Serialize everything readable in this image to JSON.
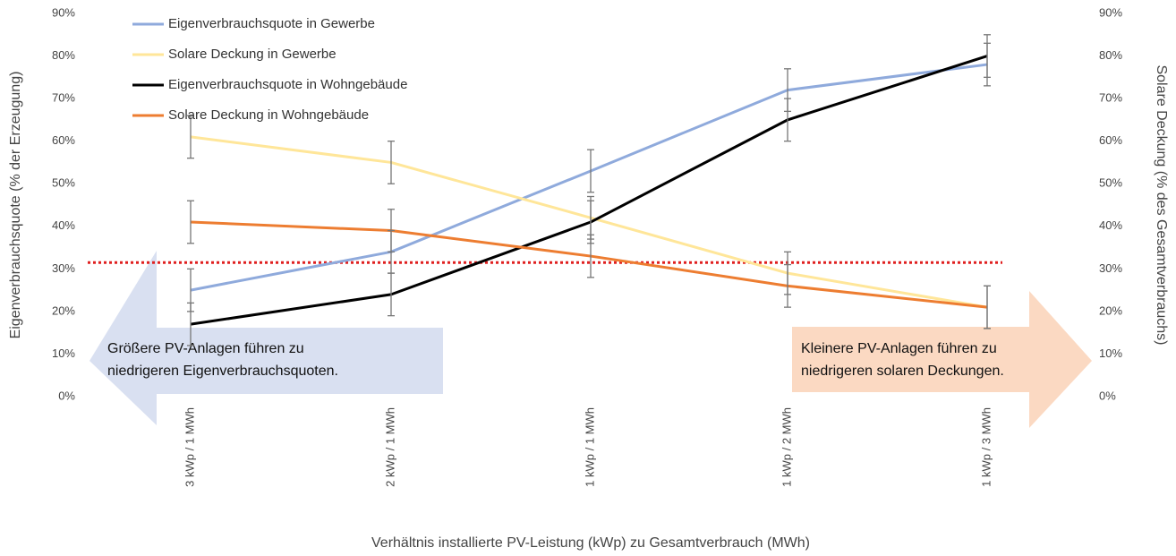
{
  "chart_data": {
    "type": "line",
    "categories": [
      "3 kWp / 1 MWh",
      "2 kWp / 1 MWh",
      "1 kWp / 1 MWh",
      "1 kWp / 2 MWh",
      "1 kWp / 3 MWh"
    ],
    "series": [
      {
        "name": "Eigenverbrauchsquote in Gewerbe",
        "color": "#8faadc",
        "values": [
          25,
          34,
          53,
          72,
          78
        ],
        "errors": [
          5,
          5,
          5,
          5,
          5
        ]
      },
      {
        "name": "Solare Deckung in Gewerbe",
        "color": "#ffe699",
        "axis": "y2",
        "values": [
          61,
          55,
          42,
          29,
          21
        ],
        "errors": [
          5,
          5,
          5,
          5,
          5
        ]
      },
      {
        "name": "Eigenverbrauchsquote in Wohngebäude",
        "color": "#000000",
        "values": [
          17,
          24,
          41,
          65,
          80
        ],
        "errors": [
          5,
          5,
          5,
          5,
          5
        ]
      },
      {
        "name": "Solare Deckung in Wohngebäude",
        "color": "#ed7d31",
        "axis": "y2",
        "values": [
          41,
          39,
          33,
          26,
          21
        ],
        "errors": [
          5,
          5,
          5,
          5,
          5
        ]
      }
    ],
    "x_label": "Verhältnis installierte PV-Leistung (kWp) zu Gesamtverbrauch (MWh)",
    "y_label": "Eigenverbrauchsquote (% der Erzeugung)",
    "y2_label": "Solare Deckung (% des Gesamtverbrauchs)",
    "ylim": [
      0,
      90
    ],
    "yticks": [
      {
        "value": 0,
        "label": "0%"
      },
      {
        "value": 10,
        "label": "10%"
      },
      {
        "value": 20,
        "label": "20%"
      },
      {
        "value": 30,
        "label": "30%"
      },
      {
        "value": 40,
        "label": "40%"
      },
      {
        "value": 50,
        "label": "50%"
      },
      {
        "value": 60,
        "label": "60%"
      },
      {
        "value": 70,
        "label": "70%"
      },
      {
        "value": 80,
        "label": "80%"
      },
      {
        "value": 90,
        "label": "90%"
      }
    ],
    "y2lim": [
      0,
      90
    ],
    "y2ticks": [
      {
        "value": 0,
        "label": "0%"
      },
      {
        "value": 10,
        "label": "10%"
      },
      {
        "value": 20,
        "label": "20%"
      },
      {
        "value": 30,
        "label": "30%"
      },
      {
        "value": 40,
        "label": "40%"
      },
      {
        "value": 50,
        "label": "50%"
      },
      {
        "value": 60,
        "label": "60%"
      },
      {
        "value": 70,
        "label": "70%"
      },
      {
        "value": 80,
        "label": "80%"
      },
      {
        "value": 90,
        "label": "90%"
      }
    ],
    "hline": {
      "value": 31.5,
      "color": "#e02020"
    },
    "legend": "top-left",
    "annotations": [
      {
        "lines": [
          "Größere PV-Anlagen führen zu",
          "niedrigeren Eigenverbrauchsquoten."
        ],
        "color": "#d9e0f1"
      },
      {
        "lines": [
          "Kleinere PV-Anlagen führen zu",
          "niedrigeren solaren Deckungen."
        ],
        "color": "#fbd9c2"
      }
    ]
  }
}
